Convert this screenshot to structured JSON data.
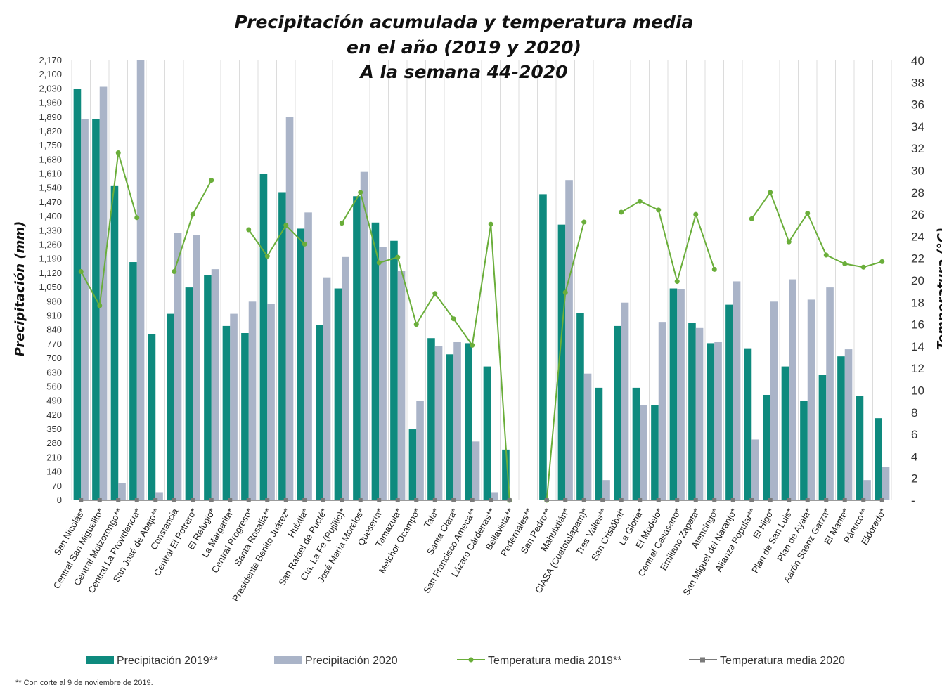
{
  "chart_data": {
    "type": "bar",
    "title": [
      "Precipitación acumulada y temperatura media",
      "en el año (2019 y 2020)",
      "A la semana 44-2020"
    ],
    "ylabel": "Precipitación (mm)",
    "y2label": "Temperatura (°C)",
    "ylim": [
      0,
      2170
    ],
    "y2lim": [
      0,
      40
    ],
    "yticks": [
      "0",
      "70",
      "140",
      "210",
      "280",
      "350",
      "420",
      "490",
      "560",
      "630",
      "700",
      "770",
      "840",
      "910",
      "980",
      "1,050",
      "1,120",
      "1,190",
      "1,260",
      "1,330",
      "1,400",
      "1,470",
      "1,540",
      "1,610",
      "1,680",
      "1,750",
      "1,820",
      "1,890",
      "1,960",
      "2,030",
      "2,100",
      "2,170"
    ],
    "y2ticks": [
      "-",
      "2",
      "4",
      "6",
      "8",
      "10",
      "12",
      "14",
      "16",
      "18",
      "20",
      "22",
      "24",
      "26",
      "28",
      "30",
      "32",
      "34",
      "36",
      "38",
      "40"
    ],
    "categories": [
      "San Nicolás*",
      "Central San Miguelito*",
      "Central Motzorongo**",
      "Central La Providencia*",
      "San José de Abajo**",
      "Constancia",
      "Central El Potrero*",
      "El Refugio*",
      "La Margarita*",
      "Central Progreso*",
      "Santa Rosalía**",
      "Presidente Benito Juárez*",
      "Huixtla*",
      "San Rafael de Pucté*",
      "Cía. La Fe (Pujiltic)*",
      "José María Morelos*",
      "Quesería*",
      "Tamazula*",
      "Melchor Ocampo*",
      "Tala*",
      "Santa Clara*",
      "San Francisco Ameca**",
      "Lázaro Cárdenas**",
      "Bellavista**",
      "Pedernales**",
      "San Pedro**",
      "Mahuixtlán*",
      "CIASA (Cuatotolapam)*",
      "Tres Valles**",
      "San Cristóbal*",
      "La Gloria*",
      "El Modelo*",
      "Central Casasano*",
      "Emiliano Zapata*",
      "Atencingo*",
      "San Miguel del Naranjo*",
      "Alianza Popular**",
      "El Higo*",
      "Plan de San Luis*",
      "Plan de Ayala*",
      "Aarón Sáenz Garza*",
      "El Mante*",
      "Pánuco**",
      "Eldorado*"
    ],
    "series": [
      {
        "name": "Precipitación 2019**",
        "kind": "bar",
        "color": "#0e8a7e",
        "values": [
          2030,
          1880,
          1550,
          1175,
          820,
          920,
          1050,
          1110,
          860,
          825,
          1610,
          1520,
          1340,
          865,
          1045,
          1500,
          1370,
          1280,
          350,
          800,
          720,
          775,
          660,
          250,
          null,
          1510,
          1360,
          925,
          555,
          860,
          555,
          470,
          1045,
          875,
          775,
          965,
          750,
          520,
          660,
          490,
          620,
          710,
          515,
          405
        ]
      },
      {
        "name": "Precipitación 2020",
        "kind": "bar",
        "color": "#aab4c8",
        "values": [
          1880,
          2040,
          85,
          2170,
          40,
          1320,
          1310,
          1140,
          920,
          980,
          970,
          1890,
          1420,
          1100,
          1200,
          1620,
          1250,
          1130,
          490,
          760,
          780,
          290,
          40,
          null,
          null,
          null,
          1580,
          625,
          100,
          975,
          470,
          880,
          1040,
          850,
          780,
          1080,
          300,
          980,
          1090,
          990,
          1050,
          745,
          100,
          165
        ]
      },
      {
        "name": "Temperatura media 2019**",
        "kind": "line",
        "color": "#6aae3a",
        "values": [
          20.8,
          17.7,
          31.6,
          25.7,
          null,
          20.8,
          26.0,
          29.1,
          null,
          24.6,
          22.2,
          25.0,
          23.3,
          null,
          25.2,
          28.0,
          21.6,
          22.1,
          16.0,
          18.8,
          16.5,
          14.1,
          25.1,
          0,
          null,
          0,
          18.9,
          25.3,
          null,
          26.2,
          27.2,
          26.4,
          19.9,
          26.0,
          21.0,
          null,
          25.6,
          28.0,
          23.5,
          26.1,
          22.3,
          21.5,
          21.2,
          21.7
        ]
      },
      {
        "name": "Temperatura media 2020",
        "kind": "line",
        "color": "#7a7a7a",
        "values": [
          0,
          0,
          0,
          0,
          0,
          0,
          0,
          0,
          0,
          0,
          0,
          0,
          0,
          0,
          0,
          0,
          0,
          0,
          0,
          0,
          0,
          0,
          0,
          0,
          null,
          0,
          0,
          0,
          0,
          0,
          0,
          0,
          0,
          0,
          0,
          0,
          0,
          0,
          0,
          0,
          0,
          0,
          0,
          0
        ]
      }
    ],
    "legend_position": "bottom",
    "grid": "vertical",
    "footnote": "** Con corte al 9  de  noviembre de 2019."
  }
}
